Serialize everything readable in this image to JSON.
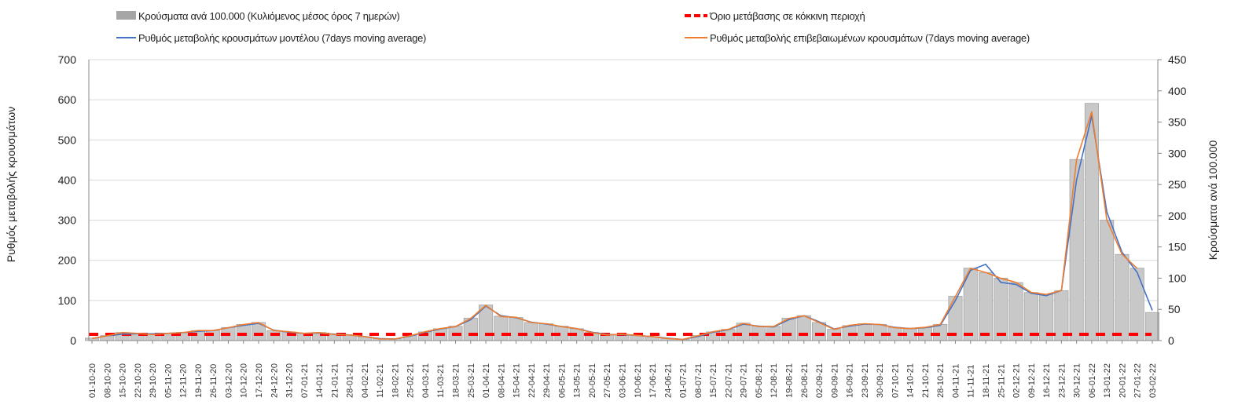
{
  "chart_data": {
    "type": "bar+line",
    "legend": {
      "bars": "Κρούσματα ανά 100.000 (Κυλιόμενος μέσος όρος 7 ημερών)",
      "threshold": "Όριο μετάβασης σε κόκκινη περιοχή",
      "model": "Ρυθμός μεταβολής κρουσμάτων μοντέλου (7days moving average)",
      "confirmed": "Ρυθμός μεταβολής επιβεβαιωμένων κρουσμάτων (7days moving average)"
    },
    "legend_placement": "top",
    "ylabel_left": "Ρυθμός μεταβολής κρουσμάτων",
    "ylabel_right": "Κρούσματα ανά 100.000",
    "ylim_left": [
      0,
      700
    ],
    "ylim_right": [
      0,
      450
    ],
    "yticks_left": [
      "0",
      "100",
      "200",
      "300",
      "400",
      "500",
      "600",
      "700"
    ],
    "yticks_right": [
      "0",
      "50",
      "100",
      "150",
      "200",
      "250",
      "300",
      "350",
      "400",
      "450"
    ],
    "grid": true,
    "colors": {
      "bars": "#a6a6a6",
      "threshold": "#ff0000",
      "model": "#4472c4",
      "confirmed": "#ed7d31"
    },
    "categories": [
      "01-10-20",
      "08-10-20",
      "15-10-20",
      "22-10-20",
      "29-10-20",
      "05-11-20",
      "12-11-20",
      "19-11-20",
      "26-11-20",
      "03-12-20",
      "10-12-20",
      "17-12-20",
      "24-12-20",
      "31-12-20",
      "07-01-21",
      "14-01-21",
      "21-01-21",
      "28-01-21",
      "04-02-21",
      "11-02-21",
      "18-02-21",
      "25-02-21",
      "04-03-21",
      "11-03-21",
      "18-03-21",
      "25-03-21",
      "01-04-21",
      "08-04-21",
      "15-04-21",
      "22-04-21",
      "29-04-21",
      "06-05-21",
      "13-05-21",
      "20-05-21",
      "27-05-21",
      "03-06-21",
      "10-06-21",
      "17-06-21",
      "24-06-21",
      "01-07-21",
      "08-07-21",
      "15-07-21",
      "22-07-21",
      "29-07-21",
      "05-08-21",
      "12-08-21",
      "19-08-21",
      "26-08-21",
      "02-09-21",
      "09-09-21",
      "16-09-21",
      "23-09-21",
      "30-09-21",
      "07-10-21",
      "14-10-21",
      "21-10-21",
      "28-10-21",
      "04-11-21",
      "11-11-21",
      "18-11-21",
      "25-11-21",
      "02-12-21",
      "09-12-21",
      "16-12-21",
      "23-12-21",
      "30-12-21",
      "06-01-22",
      "13-01-22",
      "20-01-22",
      "27-01-22",
      "03-02-22"
    ],
    "series": [
      {
        "name": "bars",
        "axis": "right",
        "values": [
          4,
          8,
          13,
          12,
          10,
          12,
          13,
          16,
          16,
          21,
          26,
          29,
          16,
          14,
          12,
          13,
          10,
          9,
          6,
          3,
          3,
          8,
          14,
          19,
          23,
          36,
          57,
          39,
          37,
          29,
          27,
          23,
          19,
          13,
          9,
          10,
          8,
          6,
          3,
          2,
          8,
          14,
          18,
          28,
          23,
          23,
          36,
          40,
          29,
          18,
          24,
          27,
          26,
          21,
          19,
          21,
          26,
          71,
          116,
          109,
          100,
          93,
          77,
          74,
          80,
          290,
          380,
          193,
          138,
          116,
          45
        ]
      },
      {
        "name": "model",
        "axis": "left",
        "values": [
          5,
          12,
          16,
          17,
          17,
          18,
          20,
          23,
          25,
          32,
          38,
          43,
          26,
          21,
          18,
          19,
          16,
          14,
          10,
          5,
          4,
          11,
          21,
          29,
          35,
          52,
          86,
          62,
          57,
          46,
          41,
          35,
          30,
          21,
          15,
          15,
          13,
          10,
          6,
          3,
          10,
          21,
          27,
          41,
          36,
          34,
          52,
          62,
          47,
          29,
          36,
          41,
          40,
          33,
          30,
          32,
          38,
          100,
          175,
          190,
          145,
          140,
          118,
          112,
          125,
          400,
          560,
          320,
          220,
          170,
          75
        ]
      },
      {
        "name": "confirmed",
        "axis": "left",
        "values": [
          5,
          12,
          20,
          18,
          15,
          18,
          20,
          25,
          25,
          32,
          40,
          45,
          25,
          22,
          18,
          20,
          15,
          14,
          10,
          4,
          4,
          12,
          22,
          30,
          35,
          55,
          88,
          60,
          58,
          45,
          42,
          35,
          30,
          20,
          14,
          16,
          13,
          10,
          5,
          3,
          12,
          22,
          28,
          43,
          35,
          35,
          55,
          62,
          45,
          28,
          38,
          42,
          40,
          32,
          30,
          33,
          40,
          110,
          180,
          170,
          155,
          145,
          120,
          115,
          125,
          450,
          570,
          300,
          215,
          180,
          null
        ]
      },
      {
        "name": "threshold",
        "axis": "right",
        "values_constant": 10
      }
    ]
  }
}
